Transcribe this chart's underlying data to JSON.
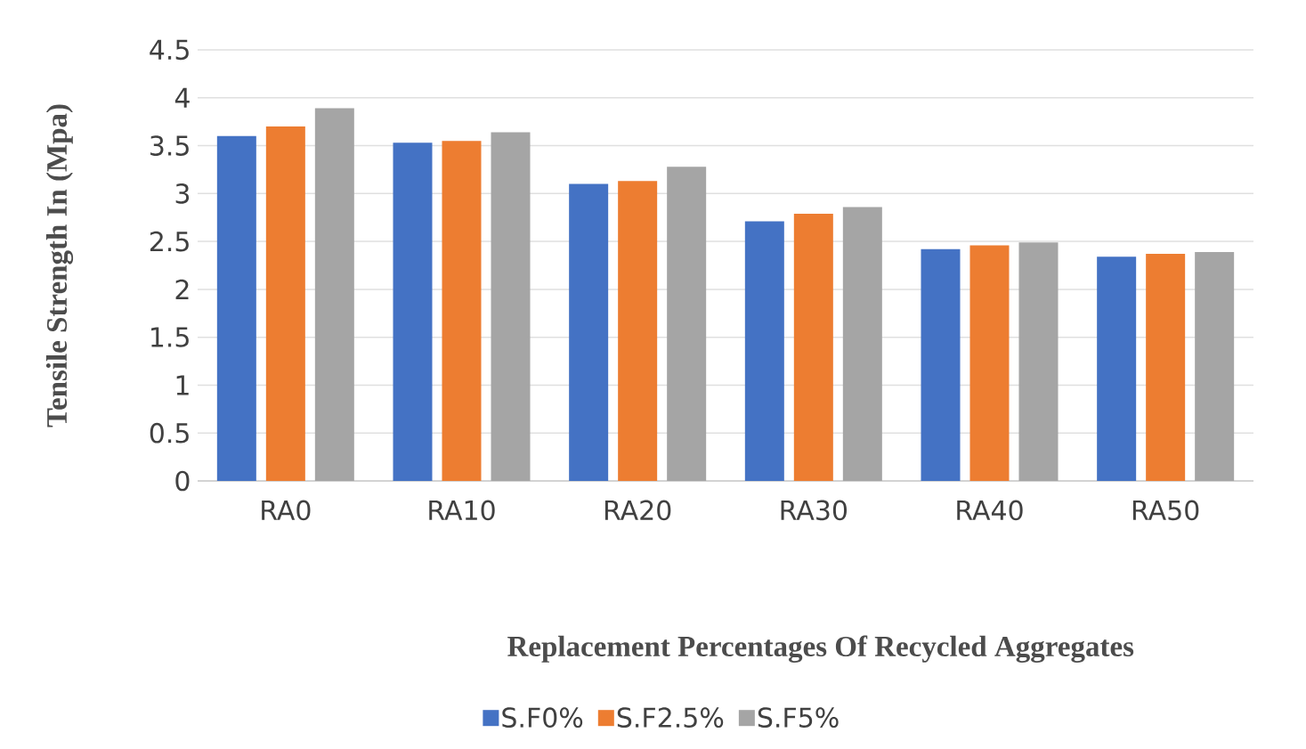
{
  "chart_data": {
    "type": "bar",
    "xlabel": "Replacement Percentages Of Recycled Aggregates",
    "ylabel": "Tensile Strength In (Mpa)",
    "categories": [
      "RA0",
      "RA10",
      "RA20",
      "RA30",
      "RA40",
      "RA50"
    ],
    "series": [
      {
        "name": "S.F0%",
        "color": "#4472c4",
        "values": [
          3.6,
          3.53,
          3.1,
          2.71,
          2.42,
          2.34
        ]
      },
      {
        "name": "S.F2.5%",
        "color": "#ed7d31",
        "values": [
          3.7,
          3.55,
          3.13,
          2.79,
          2.46,
          2.37
        ]
      },
      {
        "name": "S.F5%",
        "color": "#a5a5a5",
        "values": [
          3.89,
          3.64,
          3.28,
          2.86,
          2.49,
          2.39
        ]
      }
    ],
    "ylim": [
      0,
      4.5
    ],
    "yticks": [
      0,
      0.5,
      1,
      1.5,
      2,
      2.5,
      3,
      3.5,
      4,
      4.5
    ],
    "grid": "y",
    "legend": "bottom"
  }
}
